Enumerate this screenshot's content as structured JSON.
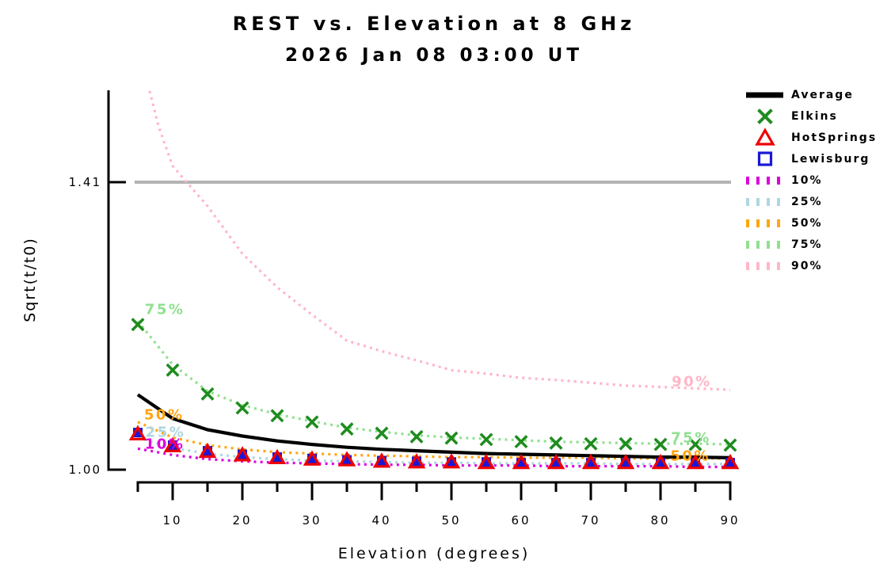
{
  "title": "REST vs. Elevation at 8 GHz",
  "subtitle": "2026 Jan 08 03:00 UT",
  "axes": {
    "xlabel": "Elevation (degrees)",
    "ylabel": "Sqrt(t/t0)",
    "x_major_ticks": [
      10,
      20,
      30,
      40,
      50,
      60,
      70,
      80,
      90
    ],
    "x_minor_ticks": [
      5,
      15,
      25,
      35,
      45,
      55,
      65,
      75,
      85
    ],
    "y_ticks": [
      {
        "value": 1.0,
        "label": "1.00"
      },
      {
        "value": 1.41,
        "label": "1.41"
      }
    ],
    "xlim": [
      5,
      90
    ],
    "ylim": [
      1.0,
      1.54
    ]
  },
  "colors": {
    "average": "#000000",
    "elkins": "#1e8c1e",
    "hotsprings": "#ee0000",
    "lewisburg": "#1818d8",
    "p10": "#dd00dd",
    "p25": "#aed6e2",
    "p50": "#ffa510",
    "p75": "#90e090",
    "p90": "#ffb6c8",
    "reference": "#b3b3b3",
    "axis": "#000000"
  },
  "legend": {
    "items": [
      {
        "label": "Average",
        "marker": "thick-line",
        "color_key": "average"
      },
      {
        "label": "Elkins",
        "marker": "x-cross",
        "color_key": "elkins"
      },
      {
        "label": "HotSprings",
        "marker": "triangle",
        "color_key": "hotsprings"
      },
      {
        "label": "Lewisburg",
        "marker": "square",
        "color_key": "lewisburg"
      },
      {
        "label": "10%",
        "marker": "dashes",
        "color_key": "p10"
      },
      {
        "label": "25%",
        "marker": "dashes",
        "color_key": "p25"
      },
      {
        "label": "50%",
        "marker": "dashes",
        "color_key": "p50"
      },
      {
        "label": "75%",
        "marker": "dashes",
        "color_key": "p75"
      },
      {
        "label": "90%",
        "marker": "dashes",
        "color_key": "p90"
      }
    ]
  },
  "chart_data": {
    "type": "line",
    "title": "REST vs. Elevation at 8 GHz",
    "subtitle": "2026 Jan 08 03:00 UT",
    "xlabel": "Elevation (degrees)",
    "ylabel": "Sqrt(t/t0)",
    "xlim": [
      5,
      90
    ],
    "ylim": [
      1.0,
      1.54
    ],
    "grid": false,
    "legend_position": "upper-right-outside",
    "reference_line": {
      "value": 1.41,
      "color_key": "reference"
    },
    "x": [
      5,
      10,
      15,
      20,
      25,
      30,
      35,
      40,
      45,
      50,
      55,
      60,
      65,
      70,
      75,
      80,
      85,
      90
    ],
    "series": [
      {
        "name": "90%",
        "style": "dotted",
        "color_key": "p90",
        "x": [
          6.7,
          8,
          10,
          15,
          20,
          25,
          30,
          35,
          40,
          45,
          50,
          55,
          60,
          65,
          70,
          75,
          80,
          85,
          90
        ],
        "values": [
          1.54,
          1.489,
          1.433,
          1.376,
          1.308,
          1.26,
          1.221,
          1.184,
          1.169,
          1.156,
          1.142,
          1.137,
          1.131,
          1.128,
          1.124,
          1.12,
          1.118,
          1.116,
          1.114
        ]
      },
      {
        "name": "75%",
        "style": "dotted",
        "color_key": "p75",
        "values": [
          1.212,
          1.15,
          1.112,
          1.092,
          1.079,
          1.069,
          1.06,
          1.054,
          1.049,
          1.046,
          1.044,
          1.042,
          1.04,
          1.039,
          1.038,
          1.037,
          1.037,
          1.036
        ]
      },
      {
        "name": "50%",
        "style": "dotted",
        "color_key": "p50",
        "values": [
          1.068,
          1.046,
          1.035,
          1.029,
          1.025,
          1.023,
          1.021,
          1.02,
          1.019,
          1.018,
          1.018,
          1.017,
          1.017,
          1.017,
          1.016,
          1.016,
          1.016,
          1.016
        ]
      },
      {
        "name": "25%",
        "style": "dotted",
        "color_key": "p25",
        "values": [
          1.046,
          1.031,
          1.023,
          1.018,
          1.015,
          1.013,
          1.012,
          1.011,
          1.01,
          1.01,
          1.009,
          1.009,
          1.009,
          1.009,
          1.008,
          1.008,
          1.008,
          1.008
        ]
      },
      {
        "name": "10%",
        "style": "dotted",
        "color_key": "p10",
        "values": [
          1.03,
          1.021,
          1.015,
          1.012,
          1.01,
          1.009,
          1.008,
          1.007,
          1.007,
          1.006,
          1.006,
          1.006,
          1.005,
          1.005,
          1.005,
          1.005,
          1.004,
          1.004
        ]
      },
      {
        "name": "Average",
        "style": "solid",
        "width": 4.2,
        "color_key": "average",
        "values": [
          1.107,
          1.073,
          1.057,
          1.048,
          1.041,
          1.036,
          1.032,
          1.029,
          1.027,
          1.025,
          1.023,
          1.022,
          1.021,
          1.02,
          1.019,
          1.018,
          1.018,
          1.017
        ]
      },
      {
        "name": "Lewisburg",
        "style": "markers",
        "marker": "square",
        "color_key": "lewisburg",
        "values": [
          1.053,
          1.035,
          1.027,
          1.022,
          1.018,
          1.016,
          1.014,
          1.013,
          1.012,
          1.011,
          1.011,
          1.01,
          1.01,
          1.01,
          1.01,
          1.01,
          1.01,
          1.01
        ]
      },
      {
        "name": "HotSprings",
        "style": "markers",
        "marker": "triangle",
        "color_key": "hotsprings",
        "values": [
          1.051,
          1.034,
          1.026,
          1.021,
          1.017,
          1.015,
          1.014,
          1.012,
          1.011,
          1.011,
          1.01,
          1.01,
          1.01,
          1.01,
          1.01,
          1.01,
          1.01,
          1.01
        ]
      },
      {
        "name": "Elkins",
        "style": "markers",
        "marker": "x-cross",
        "color_key": "elkins",
        "values": [
          1.207,
          1.142,
          1.108,
          1.088,
          1.077,
          1.068,
          1.058,
          1.052,
          1.047,
          1.045,
          1.043,
          1.04,
          1.038,
          1.037,
          1.037,
          1.036,
          1.036,
          1.035
        ]
      }
    ],
    "annotations": [
      {
        "text": "75%",
        "elev": 6.0,
        "value": 1.222,
        "color_key": "p75"
      },
      {
        "text": "50%",
        "elev": 5.9,
        "value": 1.072,
        "color_key": "p50"
      },
      {
        "text": "25%",
        "elev": 6.1,
        "value": 1.047,
        "color_key": "p25"
      },
      {
        "text": "10%",
        "elev": 6.0,
        "value": 1.03,
        "color_key": "p10"
      },
      {
        "text": "90%",
        "elev": 81.6,
        "value": 1.119,
        "color_key": "p90"
      },
      {
        "text": "75%",
        "elev": 81.5,
        "value": 1.039,
        "color_key": "p75"
      },
      {
        "text": "50%",
        "elev": 81.4,
        "value": 1.013,
        "color_key": "p50"
      }
    ]
  }
}
